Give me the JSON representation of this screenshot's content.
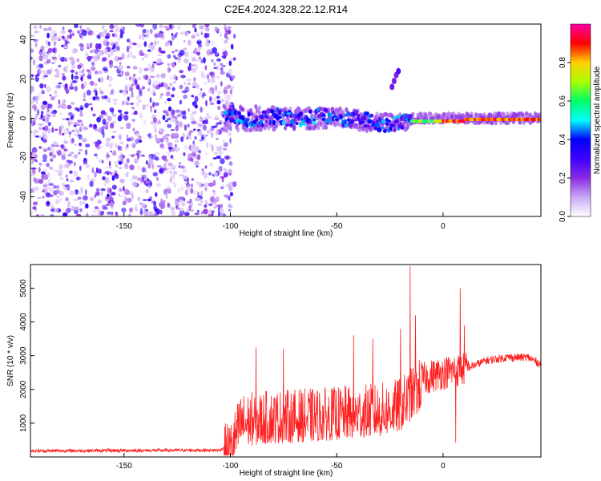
{
  "title": "C2E4.2024.328.22.12.R14",
  "chart_data": [
    {
      "type": "heatmap",
      "xlabel": "Height of straight line (km)",
      "ylabel": "Frequency (Hz)",
      "xlim": [
        -194,
        46
      ],
      "ylim": [
        -50,
        48
      ],
      "xticks": [
        -150,
        -100,
        -50,
        0
      ],
      "yticks": [
        -40,
        -20,
        0,
        20,
        40
      ],
      "colorbar": {
        "label": "Normalized spectral amplitude",
        "range": [
          0,
          1
        ],
        "ticks": [
          "0.0",
          "0.2",
          "0.4",
          "0.6",
          "0.8"
        ],
        "colormap": [
          "#ffffff",
          "#c9a8f5",
          "#8a2be2",
          "#3f00ff",
          "#0000ff",
          "#00ffff",
          "#00ff66",
          "#aaff00",
          "#ffd000",
          "#ff0000",
          "#ff00aa"
        ]
      },
      "features": {
        "noise_region_x": [
          -194,
          -102
        ],
        "signal_band_center_hz": 0,
        "strong_signal_start_x": -15,
        "side_blob": {
          "x": -22,
          "y": 22
        }
      }
    },
    {
      "type": "line",
      "xlabel": "Height of straight line (km)",
      "ylabel": "SNR (10 * v/v)",
      "xlim": [
        -194,
        46
      ],
      "ylim": [
        0,
        5700
      ],
      "xticks": [
        -150,
        -100,
        -50,
        0
      ],
      "yticks": [
        1000,
        2000,
        3000,
        4000,
        5000
      ],
      "color": "#ff2020",
      "profile_x": [
        -194,
        -105,
        -100,
        -95,
        -80,
        -60,
        -40,
        -30,
        -20,
        -10,
        0,
        10,
        20,
        30,
        40,
        46
      ],
      "profile_y": [
        180,
        200,
        400,
        1200,
        1300,
        1350,
        1450,
        1500,
        1650,
        2300,
        2500,
        2600,
        2850,
        2950,
        2950,
        2750
      ],
      "spikes": [
        {
          "x": -15.5,
          "y": 5650
        },
        {
          "x": 8,
          "y": 5000
        },
        {
          "x": -13,
          "y": 4200
        },
        {
          "x": -20,
          "y": 3800
        },
        {
          "x": -33,
          "y": 3500
        },
        {
          "x": -42,
          "y": 3600
        },
        {
          "x": -75,
          "y": 3200
        },
        {
          "x": -88,
          "y": 3250
        },
        {
          "x": 10,
          "y": 3900
        },
        {
          "x": 6,
          "y": 420,
          "dip": true
        }
      ]
    }
  ]
}
